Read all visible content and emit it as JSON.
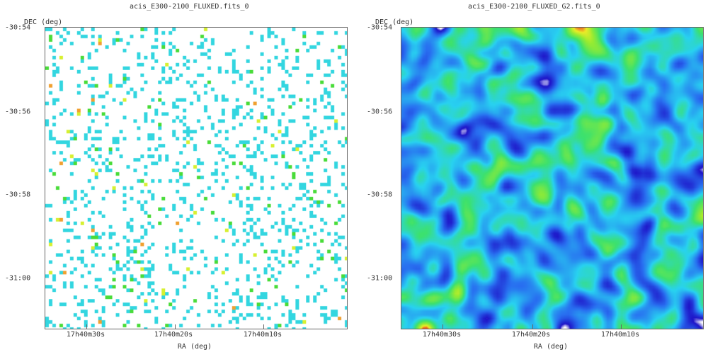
{
  "panels": [
    {
      "title": "acis_E300-2100_FLUXED.fits_0",
      "ylabel": "DEC (deg)",
      "xlabel": "RA (deg)",
      "yticks": [
        "-30:54",
        "-30:56",
        "-30:58",
        "-31:00"
      ],
      "xticks": [
        "17h40m30s",
        "17h40m20s",
        "17h40m10s"
      ],
      "image_style": "sparse-pixels",
      "colors": {
        "background": "#ffffff",
        "dominant": "#33d6e0",
        "secondary": "#49dc39",
        "tertiary": "#d7f030",
        "hot": "#f0a030"
      }
    },
    {
      "title": "acis_E300-2100_FLUXED_G2.fits_0",
      "ylabel": "DEC (deg)",
      "xlabel": "RA (deg)",
      "yticks": [
        "-30:54",
        "-30:56",
        "-30:58",
        "-31:00"
      ],
      "xticks": [
        "17h40m30s",
        "17h40m20s",
        "17h40m10s"
      ],
      "image_style": "smoothed-field",
      "colors": {
        "low": "#1010c8",
        "mid": "#24d0f0",
        "high": "#46e058",
        "peak": "#e0e830",
        "max": "#f06820"
      }
    }
  ]
}
